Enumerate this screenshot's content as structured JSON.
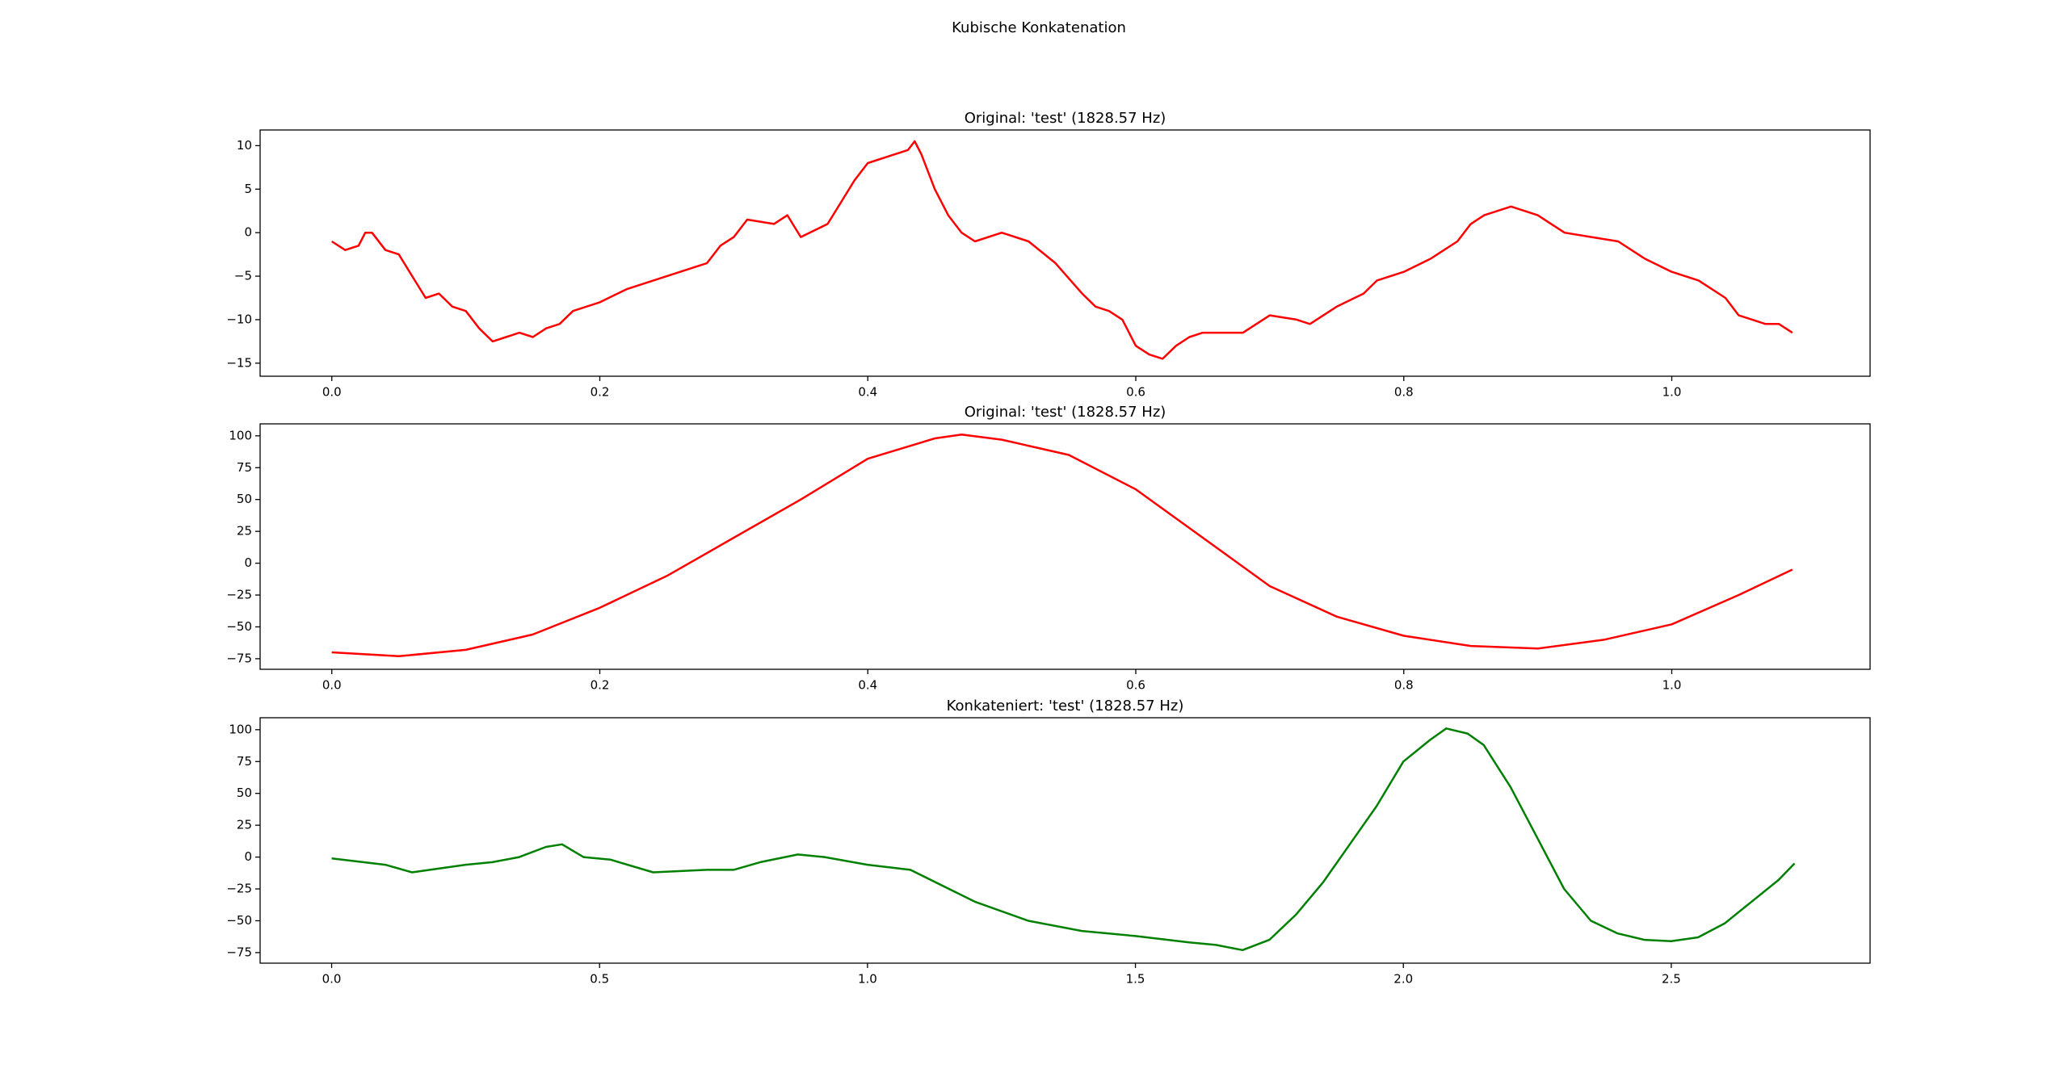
{
  "title": "Kubische Konkatenation",
  "chart_data": [
    {
      "type": "line",
      "title": "Original: 'test' (1828.57 Hz)",
      "color": "#ff0000",
      "x": [
        0,
        0.01,
        0.02,
        0.025,
        0.03,
        0.04,
        0.05,
        0.06,
        0.07,
        0.08,
        0.09,
        0.1,
        0.11,
        0.12,
        0.13,
        0.14,
        0.15,
        0.16,
        0.17,
        0.18,
        0.2,
        0.22,
        0.24,
        0.26,
        0.28,
        0.29,
        0.3,
        0.31,
        0.33,
        0.34,
        0.35,
        0.37,
        0.38,
        0.39,
        0.4,
        0.42,
        0.43,
        0.435,
        0.44,
        0.45,
        0.46,
        0.47,
        0.48,
        0.5,
        0.52,
        0.54,
        0.56,
        0.57,
        0.58,
        0.59,
        0.6,
        0.61,
        0.62,
        0.63,
        0.64,
        0.65,
        0.67,
        0.68,
        0.7,
        0.72,
        0.73,
        0.75,
        0.77,
        0.78,
        0.8,
        0.82,
        0.84,
        0.85,
        0.86,
        0.87,
        0.88,
        0.9,
        0.92,
        0.94,
        0.96,
        0.98,
        1.0,
        1.02,
        1.04,
        1.05,
        1.06,
        1.07,
        1.08,
        1.09
      ],
      "values": [
        -1,
        -2,
        -1.5,
        0,
        0,
        -2,
        -2.5,
        -5,
        -7.5,
        -7,
        -8.5,
        -9,
        -11,
        -12.5,
        -12,
        -11.5,
        -12,
        -11,
        -10.5,
        -9,
        -8,
        -6.5,
        -5.5,
        -4.5,
        -3.5,
        -1.5,
        -0.5,
        1.5,
        1,
        2,
        -0.5,
        1,
        3.5,
        6,
        8,
        9,
        9.5,
        10.5,
        9,
        5,
        2,
        0,
        -1,
        0,
        -1,
        -3.5,
        -7,
        -8.5,
        -9,
        -10,
        -13,
        -14,
        -14.5,
        -13,
        -12,
        -11.5,
        -11.5,
        -11.5,
        -9.5,
        -10,
        -10.5,
        -8.5,
        -7,
        -5.5,
        -4.5,
        -3,
        -1,
        1,
        2,
        2.5,
        3,
        2,
        0,
        -0.5,
        -1,
        -3,
        -4.5,
        -5.5,
        -7.5,
        -9.5,
        -10,
        -10.5,
        -10.5,
        -11.5
      ],
      "xlim": [
        -0.0535,
        1.148
      ],
      "ylim": [
        -16.5,
        11.8
      ],
      "xticks": [
        {
          "value": 0,
          "label": "0.0"
        },
        {
          "value": 0.2,
          "label": "0.2"
        },
        {
          "value": 0.4,
          "label": "0.4"
        },
        {
          "value": 0.6,
          "label": "0.6"
        },
        {
          "value": 0.8,
          "label": "0.8"
        },
        {
          "value": 1,
          "label": "1.0"
        }
      ],
      "yticks": [
        {
          "value": -15,
          "label": "−15"
        },
        {
          "value": -10,
          "label": "−10"
        },
        {
          "value": -5,
          "label": "−5"
        },
        0,
        5,
        10
      ]
    },
    {
      "type": "line",
      "title": "Original: 'test' (1828.57 Hz)",
      "color": "#ff0000",
      "x": [
        0,
        0.05,
        0.1,
        0.15,
        0.2,
        0.25,
        0.3,
        0.35,
        0.4,
        0.45,
        0.47,
        0.5,
        0.55,
        0.6,
        0.65,
        0.7,
        0.75,
        0.8,
        0.85,
        0.9,
        0.95,
        1.0,
        1.05,
        1.09
      ],
      "values": [
        -70,
        -73,
        -68,
        -56,
        -35,
        -10,
        20,
        50,
        82,
        98,
        101,
        97,
        85,
        58,
        20,
        -18,
        -42,
        -57,
        -65,
        -67,
        -60,
        -48,
        -25,
        -5
      ],
      "xlim": [
        -0.0535,
        1.148
      ],
      "ylim": [
        -83.3,
        109.4
      ],
      "xticks": [
        {
          "value": 0,
          "label": "0.0"
        },
        {
          "value": 0.2,
          "label": "0.2"
        },
        {
          "value": 0.4,
          "label": "0.4"
        },
        {
          "value": 0.6,
          "label": "0.6"
        },
        {
          "value": 0.8,
          "label": "0.8"
        },
        {
          "value": 1,
          "label": "1.0"
        }
      ],
      "yticks": [
        {
          "value": -75,
          "label": "−75"
        },
        {
          "value": -50,
          "label": "−50"
        },
        {
          "value": -25,
          "label": "−25"
        },
        0,
        25,
        50,
        75,
        100
      ]
    },
    {
      "type": "line",
      "title": "Konkateniert: 'test' (1828.57 Hz)",
      "color": "#008000",
      "x": [
        0,
        0.1,
        0.15,
        0.25,
        0.3,
        0.35,
        0.4,
        0.43,
        0.47,
        0.52,
        0.6,
        0.7,
        0.75,
        0.8,
        0.87,
        0.92,
        1.0,
        1.08,
        1.2,
        1.3,
        1.4,
        1.5,
        1.6,
        1.65,
        1.7,
        1.75,
        1.8,
        1.85,
        1.9,
        1.95,
        2.0,
        2.05,
        2.08,
        2.12,
        2.15,
        2.2,
        2.25,
        2.3,
        2.35,
        2.4,
        2.45,
        2.5,
        2.55,
        2.6,
        2.65,
        2.7,
        2.73
      ],
      "values": [
        -1,
        -6,
        -12,
        -6,
        -4,
        0,
        8,
        10,
        0,
        -2,
        -12,
        -10,
        -10,
        -4,
        2,
        0,
        -6,
        -10,
        -35,
        -50,
        -58,
        -62,
        -67,
        -69,
        -73,
        -65,
        -45,
        -20,
        10,
        40,
        75,
        92,
        101,
        97,
        88,
        55,
        15,
        -25,
        -50,
        -60,
        -65,
        -66,
        -63,
        -52,
        -35,
        -18,
        -5
      ],
      "xlim": [
        -0.1335,
        2.871
      ],
      "ylim": [
        -83.3,
        109.4
      ],
      "xticks": [
        {
          "value": 0,
          "label": "0.0"
        },
        {
          "value": 0.5,
          "label": "0.5"
        },
        {
          "value": 1,
          "label": "1.0"
        },
        {
          "value": 1.5,
          "label": "1.5"
        },
        {
          "value": 2,
          "label": "2.0"
        },
        {
          "value": 2.5,
          "label": "2.5"
        }
      ],
      "yticks": [
        {
          "value": -75,
          "label": "−75"
        },
        {
          "value": -50,
          "label": "−50"
        },
        {
          "value": -25,
          "label": "−25"
        },
        0,
        25,
        50,
        75,
        100
      ]
    }
  ]
}
